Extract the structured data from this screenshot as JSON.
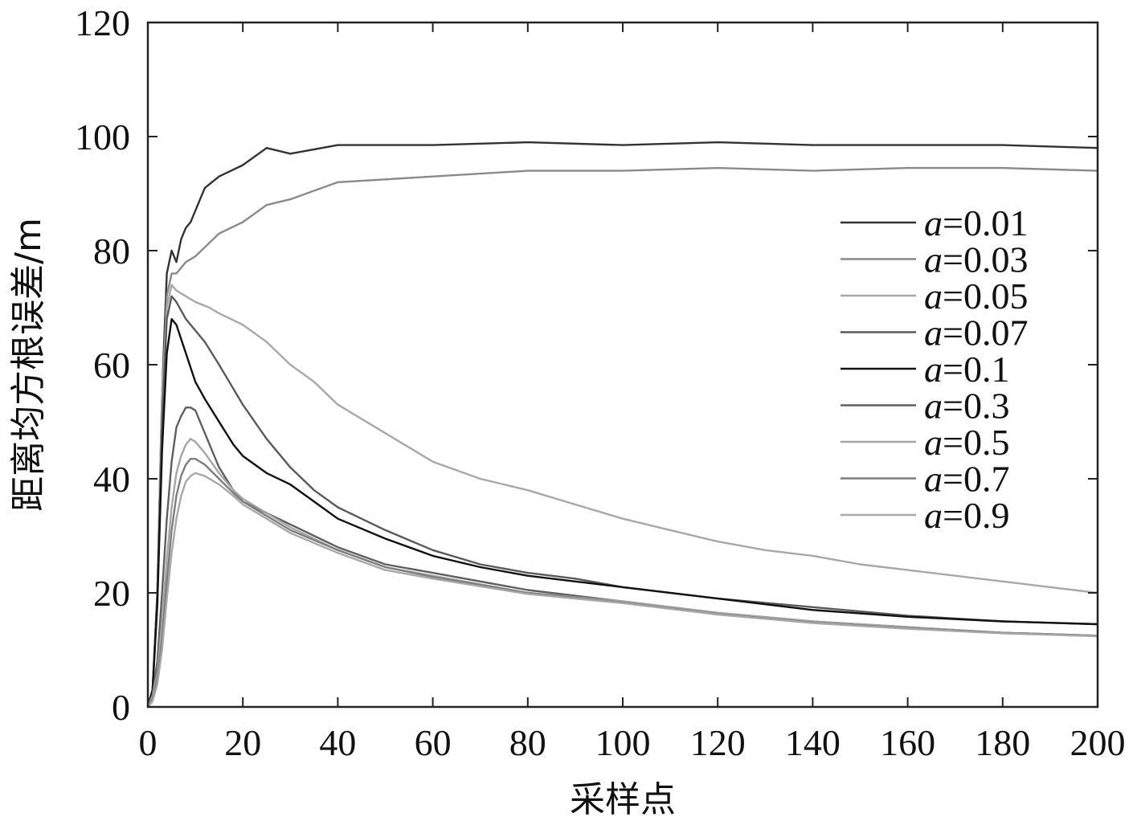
{
  "chart_data": {
    "type": "line",
    "title": "",
    "xlabel": "采样点",
    "ylabel": "距离均方根误差/m",
    "xlim": [
      0,
      200
    ],
    "ylim": [
      0,
      120
    ],
    "xticks": [
      0,
      20,
      40,
      60,
      80,
      100,
      120,
      140,
      160,
      180,
      200
    ],
    "yticks": [
      0,
      20,
      40,
      60,
      80,
      100,
      120
    ],
    "grid": false,
    "legend_position": "right",
    "legend_param": "a",
    "series": [
      {
        "name": "=0.01",
        "color": "#333333",
        "x": [
          0,
          1,
          2,
          3,
          4,
          5,
          6,
          7,
          8,
          9,
          10,
          12,
          15,
          20,
          25,
          30,
          40,
          60,
          80,
          100,
          120,
          140,
          160,
          180,
          200
        ],
        "y": [
          0,
          3,
          20,
          55,
          76,
          80,
          78,
          82,
          84,
          85,
          87,
          91,
          93,
          95,
          98,
          97,
          98.5,
          98.5,
          99,
          98.5,
          99,
          98.5,
          98.5,
          98.5,
          98
        ]
      },
      {
        "name": "=0.03",
        "color": "#8a8a8a",
        "x": [
          0,
          1,
          2,
          3,
          4,
          5,
          6,
          8,
          10,
          15,
          20,
          25,
          30,
          40,
          50,
          60,
          80,
          100,
          120,
          140,
          160,
          180,
          200
        ],
        "y": [
          0,
          3,
          18,
          52,
          72,
          76,
          76,
          78,
          79,
          83,
          85,
          88,
          89,
          92,
          92.5,
          93,
          94,
          94,
          94.5,
          94,
          94.5,
          94.5,
          94
        ]
      },
      {
        "name": "=0.05",
        "color": "#a8a8a8",
        "x": [
          0,
          1,
          2,
          3,
          4,
          5,
          6,
          8,
          10,
          13,
          15,
          20,
          25,
          30,
          35,
          40,
          50,
          60,
          70,
          80,
          90,
          100,
          110,
          120,
          130,
          140,
          150,
          160,
          170,
          180,
          190,
          200
        ],
        "y": [
          0,
          3,
          20,
          55,
          70,
          74,
          73,
          72,
          71,
          70,
          69,
          67,
          64,
          60,
          57,
          53,
          48,
          43,
          40,
          38,
          35.5,
          33,
          31,
          29,
          27.5,
          26.5,
          25,
          24,
          23,
          22,
          21,
          20
        ]
      },
      {
        "name": "=0.07",
        "color": "#5a5a5a",
        "x": [
          0,
          1,
          2,
          3,
          4,
          5,
          6,
          8,
          10,
          12,
          15,
          20,
          25,
          30,
          35,
          40,
          50,
          60,
          70,
          80,
          90,
          100,
          120,
          140,
          160,
          180,
          200
        ],
        "y": [
          0,
          3,
          20,
          50,
          68,
          72,
          71,
          68,
          66,
          64,
          60,
          53,
          47,
          42,
          38,
          35,
          31,
          27.5,
          25,
          23.5,
          22.5,
          21,
          19,
          17.5,
          16,
          15,
          14.5
        ]
      },
      {
        "name": "=0.1",
        "color": "#111111",
        "x": [
          0,
          1,
          2,
          3,
          4,
          5,
          6,
          8,
          10,
          12,
          15,
          18,
          20,
          25,
          30,
          35,
          40,
          50,
          60,
          70,
          80,
          90,
          100,
          120,
          140,
          160,
          180,
          200
        ],
        "y": [
          0,
          3,
          18,
          45,
          62,
          68,
          67,
          62,
          57,
          54,
          50,
          46,
          44,
          41,
          39,
          36,
          33,
          29.5,
          26.5,
          24.5,
          23,
          22,
          21,
          19,
          17,
          15.8,
          15,
          14.5
        ]
      },
      {
        "name": "=0.3",
        "color": "#5f5f5f",
        "x": [
          0,
          1,
          2,
          3,
          4,
          5,
          6,
          7,
          8,
          9,
          10,
          12,
          15,
          18,
          20,
          25,
          30,
          40,
          50,
          60,
          80,
          100,
          120,
          140,
          160,
          180,
          200
        ],
        "y": [
          0,
          2,
          8,
          20,
          33,
          43,
          49,
          51,
          52.5,
          52.5,
          52,
          48,
          42,
          38,
          36,
          34,
          32,
          28,
          25,
          23.5,
          20.5,
          18.5,
          16.5,
          15,
          14,
          13,
          12.5
        ]
      },
      {
        "name": "=0.5",
        "color": "#a5a5a5",
        "x": [
          0,
          1,
          2,
          3,
          4,
          5,
          6,
          7,
          8,
          9,
          10,
          12,
          15,
          18,
          20,
          25,
          30,
          40,
          50,
          60,
          80,
          100,
          120,
          140,
          160,
          180,
          200
        ],
        "y": [
          0,
          2,
          6,
          15,
          26,
          35,
          41,
          44,
          46,
          47,
          46.5,
          44.5,
          41,
          38,
          36.5,
          34,
          31.5,
          27.5,
          24.5,
          23,
          20,
          18.5,
          16.5,
          15,
          14,
          13,
          12.5
        ]
      },
      {
        "name": "=0.7",
        "color": "#7d7d7d",
        "x": [
          0,
          1,
          2,
          3,
          4,
          5,
          6,
          7,
          8,
          9,
          10,
          12,
          15,
          18,
          20,
          25,
          30,
          40,
          50,
          60,
          80,
          100,
          120,
          140,
          160,
          180,
          200
        ],
        "y": [
          0,
          1.5,
          5,
          12,
          22,
          31,
          37,
          40.5,
          42.5,
          43.5,
          43.5,
          42.5,
          40,
          37.5,
          36,
          33.5,
          31,
          27.5,
          24.5,
          22.8,
          20,
          18.3,
          16.3,
          14.8,
          13.8,
          13,
          12.5
        ]
      },
      {
        "name": "=0.9",
        "color": "#a8a8a8",
        "x": [
          0,
          1,
          2,
          3,
          4,
          5,
          6,
          7,
          8,
          9,
          10,
          12,
          15,
          18,
          20,
          25,
          30,
          40,
          50,
          60,
          80,
          100,
          120,
          140,
          160,
          180,
          200
        ],
        "y": [
          0,
          1,
          4,
          10,
          19,
          27,
          33,
          37,
          39.5,
          40.5,
          41,
          40.5,
          39,
          37,
          35.5,
          33,
          30.5,
          27,
          24,
          22.5,
          19.8,
          18.2,
          16.2,
          14.7,
          13.7,
          12.9,
          12.4
        ]
      }
    ]
  }
}
